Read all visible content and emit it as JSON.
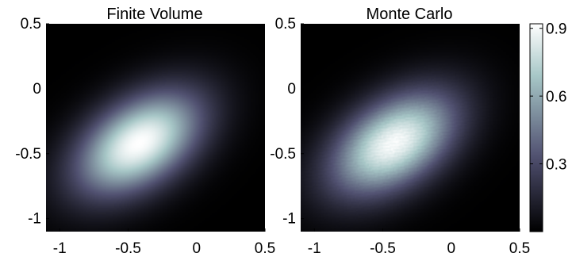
{
  "chart_data": {
    "type": "heatmap",
    "colormap": "bone",
    "colorbar": {
      "min": 0,
      "max": 0.92,
      "ticks": [
        0.3,
        0.6,
        0.9
      ],
      "tick_labels": [
        "0.3",
        "0.6",
        "0.9"
      ]
    },
    "panels": [
      {
        "title": "Finite Volume",
        "xlim": [
          -1.1,
          0.5
        ],
        "ylim": [
          -1.1,
          0.5
        ],
        "xticks": [
          -1,
          -0.5,
          0,
          0.5
        ],
        "xtick_labels": [
          "-1",
          "-0.5",
          "0",
          "0.5"
        ],
        "yticks": [
          -1,
          -0.5,
          0,
          0.5
        ],
        "ytick_labels": [
          "-1",
          "-0.5",
          "0",
          "0.5"
        ],
        "peak": {
          "x": -0.42,
          "y": -0.42,
          "value": 0.92
        },
        "sigma_x": 0.32,
        "sigma_y": 0.28,
        "correlation": 0.45,
        "grid": false
      },
      {
        "title": "Monte Carlo",
        "xlim": [
          -1.1,
          0.5
        ],
        "ylim": [
          -1.1,
          0.5
        ],
        "xticks": [
          -1,
          -0.5,
          0,
          0.5
        ],
        "xtick_labels": [
          "-1",
          "-0.5",
          "0",
          "0.5"
        ],
        "yticks": [
          -1,
          -0.5,
          0,
          0.5
        ],
        "ytick_labels": [
          "-1",
          "-0.5",
          "0",
          "0.5"
        ],
        "peak": {
          "x": -0.42,
          "y": -0.42,
          "value": 0.9
        },
        "sigma_x": 0.32,
        "sigma_y": 0.28,
        "correlation": 0.45,
        "grid": false
      }
    ]
  }
}
